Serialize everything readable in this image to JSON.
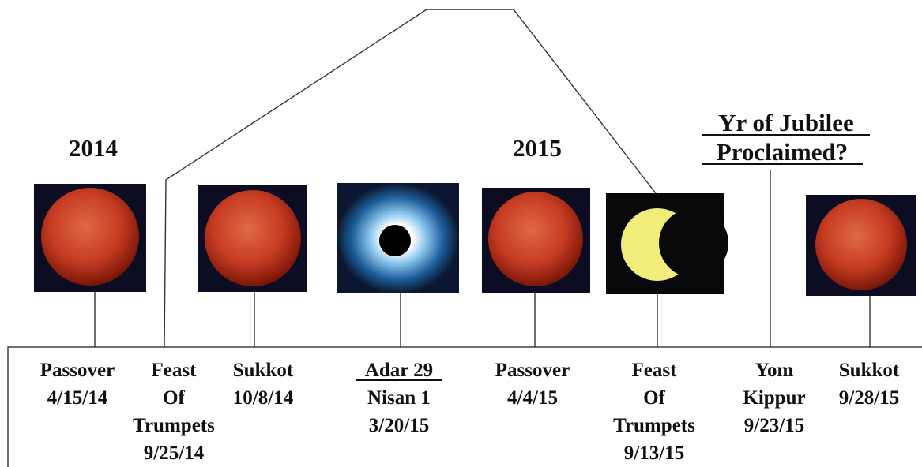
{
  "headings": {
    "year_2014": "2014",
    "year_2015": "2015",
    "jubilee": [
      "Yr of Jubilee",
      "Proclaimed?"
    ]
  },
  "events": [
    {
      "lines": [
        "Passover",
        "4/15/14"
      ]
    },
    {
      "lines": [
        "Feast",
        "Of",
        "Trumpets",
        "9/25/14"
      ]
    },
    {
      "lines": [
        "Sukkot",
        "10/8/14"
      ]
    },
    {
      "lines": [
        "Adar 29",
        "Nisan 1",
        "3/20/15"
      ]
    },
    {
      "lines": [
        "Passover",
        "4/4/15"
      ]
    },
    {
      "lines": [
        "Feast",
        "Of",
        "Trumpets",
        "9/13/15"
      ]
    },
    {
      "lines": [
        "Yom",
        "Kippur",
        "9/23/15"
      ]
    },
    {
      "lines": [
        "Sukkot",
        "9/28/15"
      ]
    }
  ]
}
